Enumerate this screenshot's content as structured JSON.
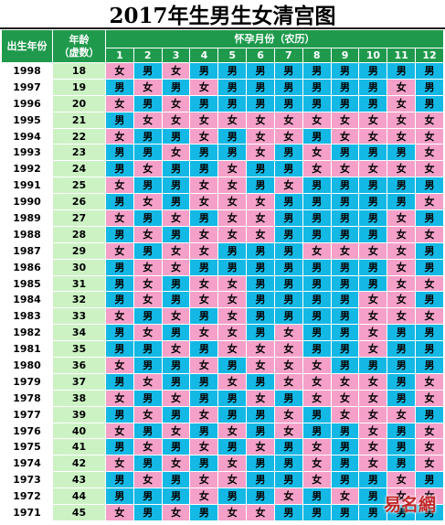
{
  "title": "2017年生男生女清宫图",
  "headers": {
    "birth_year": "出生年份",
    "age_line1": "年龄",
    "age_line2": "（虚数）",
    "month_group": "怀孕月份（农历）",
    "months": [
      "1",
      "2",
      "3",
      "4",
      "5",
      "6",
      "7",
      "8",
      "9",
      "10",
      "11",
      "12"
    ]
  },
  "gender_labels": {
    "boy": "男",
    "girl": "女"
  },
  "colors": {
    "header_green": "#1f9a4d",
    "age_column": "#ccf2c4",
    "boy": "#14b8e4",
    "girl": "#f4a0c8"
  },
  "rows": [
    {
      "year": "1998",
      "age": "18",
      "g": [
        "女",
        "男",
        "女",
        "男",
        "男",
        "男",
        "男",
        "男",
        "男",
        "男",
        "男",
        "男"
      ]
    },
    {
      "year": "1997",
      "age": "19",
      "g": [
        "男",
        "女",
        "男",
        "女",
        "男",
        "男",
        "男",
        "男",
        "男",
        "男",
        "女",
        "男"
      ]
    },
    {
      "year": "1996",
      "age": "20",
      "g": [
        "女",
        "男",
        "女",
        "男",
        "男",
        "男",
        "男",
        "男",
        "男",
        "男",
        "女",
        "男"
      ]
    },
    {
      "year": "1995",
      "age": "21",
      "g": [
        "男",
        "女",
        "女",
        "女",
        "女",
        "女",
        "女",
        "女",
        "女",
        "女",
        "女",
        "女"
      ]
    },
    {
      "year": "1994",
      "age": "22",
      "g": [
        "女",
        "男",
        "男",
        "女",
        "男",
        "女",
        "女",
        "男",
        "女",
        "女",
        "女",
        "女"
      ]
    },
    {
      "year": "1993",
      "age": "23",
      "g": [
        "男",
        "男",
        "女",
        "男",
        "男",
        "女",
        "男",
        "女",
        "男",
        "男",
        "男",
        "女"
      ]
    },
    {
      "year": "1992",
      "age": "24",
      "g": [
        "男",
        "女",
        "男",
        "男",
        "女",
        "男",
        "男",
        "女",
        "女",
        "女",
        "女",
        "女"
      ]
    },
    {
      "year": "1991",
      "age": "25",
      "g": [
        "女",
        "男",
        "男",
        "女",
        "女",
        "男",
        "女",
        "男",
        "男",
        "男",
        "男",
        "男"
      ]
    },
    {
      "year": "1990",
      "age": "26",
      "g": [
        "男",
        "女",
        "男",
        "女",
        "女",
        "女",
        "男",
        "男",
        "男",
        "男",
        "男",
        "女"
      ]
    },
    {
      "year": "1989",
      "age": "27",
      "g": [
        "女",
        "男",
        "女",
        "男",
        "女",
        "女",
        "男",
        "男",
        "男",
        "男",
        "女",
        "男"
      ]
    },
    {
      "year": "1988",
      "age": "28",
      "g": [
        "男",
        "女",
        "男",
        "女",
        "女",
        "女",
        "男",
        "男",
        "男",
        "男",
        "女",
        "女"
      ]
    },
    {
      "year": "1987",
      "age": "29",
      "g": [
        "女",
        "男",
        "女",
        "女",
        "男",
        "男",
        "男",
        "女",
        "女",
        "女",
        "女",
        "男"
      ]
    },
    {
      "year": "1986",
      "age": "30",
      "g": [
        "男",
        "女",
        "女",
        "男",
        "男",
        "男",
        "男",
        "男",
        "男",
        "男",
        "女",
        "男"
      ]
    },
    {
      "year": "1985",
      "age": "31",
      "g": [
        "男",
        "女",
        "男",
        "女",
        "女",
        "男",
        "男",
        "男",
        "男",
        "男",
        "女",
        "女"
      ]
    },
    {
      "year": "1984",
      "age": "32",
      "g": [
        "男",
        "女",
        "男",
        "女",
        "女",
        "男",
        "男",
        "男",
        "男",
        "女",
        "女",
        "男"
      ]
    },
    {
      "year": "1983",
      "age": "33",
      "g": [
        "女",
        "男",
        "女",
        "男",
        "女",
        "男",
        "男",
        "男",
        "男",
        "女",
        "女",
        "女"
      ]
    },
    {
      "year": "1982",
      "age": "34",
      "g": [
        "男",
        "女",
        "男",
        "女",
        "女",
        "男",
        "女",
        "男",
        "男",
        "女",
        "男",
        "男"
      ]
    },
    {
      "year": "1981",
      "age": "35",
      "g": [
        "男",
        "男",
        "女",
        "男",
        "女",
        "女",
        "女",
        "男",
        "男",
        "女",
        "男",
        "男"
      ]
    },
    {
      "year": "1980",
      "age": "36",
      "g": [
        "女",
        "男",
        "男",
        "女",
        "男",
        "女",
        "女",
        "女",
        "男",
        "男",
        "男",
        "男"
      ]
    },
    {
      "year": "1979",
      "age": "37",
      "g": [
        "男",
        "女",
        "男",
        "男",
        "女",
        "男",
        "女",
        "女",
        "女",
        "女",
        "男",
        "女"
      ]
    },
    {
      "year": "1978",
      "age": "38",
      "g": [
        "女",
        "男",
        "女",
        "男",
        "男",
        "女",
        "男",
        "女",
        "女",
        "女",
        "男",
        "女"
      ]
    },
    {
      "year": "1977",
      "age": "39",
      "g": [
        "男",
        "女",
        "男",
        "女",
        "男",
        "男",
        "女",
        "男",
        "女",
        "女",
        "女",
        "男"
      ]
    },
    {
      "year": "1976",
      "age": "40",
      "g": [
        "女",
        "男",
        "女",
        "男",
        "女",
        "男",
        "女",
        "男",
        "男",
        "女",
        "男",
        "女"
      ]
    },
    {
      "year": "1975",
      "age": "41",
      "g": [
        "男",
        "女",
        "男",
        "女",
        "男",
        "女",
        "男",
        "女",
        "男",
        "女",
        "男",
        "女"
      ]
    },
    {
      "year": "1974",
      "age": "42",
      "g": [
        "女",
        "男",
        "女",
        "男",
        "女",
        "男",
        "男",
        "女",
        "男",
        "女",
        "男",
        "女"
      ]
    },
    {
      "year": "1973",
      "age": "43",
      "g": [
        "男",
        "女",
        "男",
        "女",
        "女",
        "男",
        "男",
        "女",
        "男",
        "男",
        "女",
        "男"
      ]
    },
    {
      "year": "1972",
      "age": "44",
      "g": [
        "男",
        "男",
        "男",
        "女",
        "男",
        "男",
        "女",
        "男",
        "女",
        "男",
        "女",
        "女"
      ]
    },
    {
      "year": "1971",
      "age": "45",
      "g": [
        "女",
        "男",
        "女",
        "男",
        "女",
        "女",
        "男",
        "男",
        "男",
        "男",
        "男",
        "男"
      ]
    }
  ],
  "watermark": {
    "site_name": "易名網"
  }
}
